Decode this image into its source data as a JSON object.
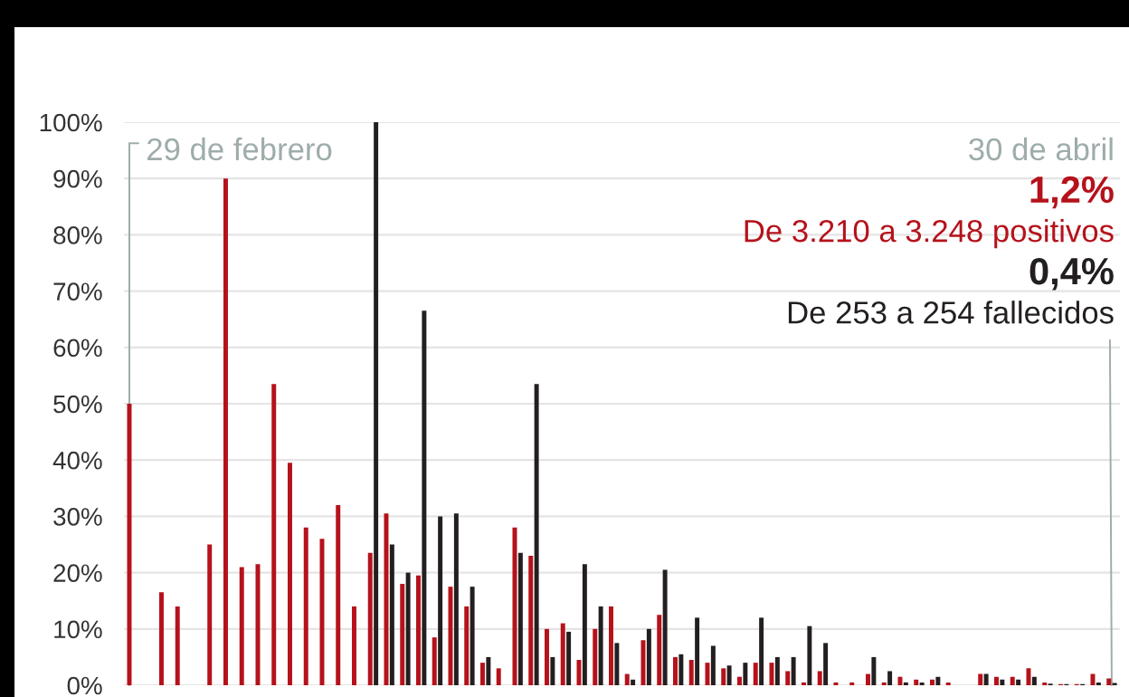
{
  "chart_data": {
    "type": "bar",
    "categories": [
      null,
      null,
      null,
      null,
      null,
      null,
      null,
      null,
      null,
      null,
      null,
      null,
      null,
      null,
      null,
      null,
      null,
      null,
      null,
      null,
      null,
      null,
      null,
      null,
      null,
      null,
      null,
      null,
      null,
      null,
      null,
      null,
      null,
      null,
      null,
      null,
      null,
      null,
      null,
      null,
      null,
      null,
      null,
      null,
      null,
      null,
      null,
      null,
      null,
      null,
      null,
      null,
      null,
      null,
      null,
      null,
      null,
      null,
      null,
      null,
      null,
      null
    ],
    "series": [
      {
        "color": "#b5121b",
        "values": [
          50,
          0,
          16.5,
          14,
          0,
          25,
          90,
          21,
          21.5,
          53.5,
          39.5,
          28,
          26,
          32,
          14,
          23.5,
          30.5,
          18,
          19.5,
          8.5,
          17.5,
          14,
          4,
          3,
          28,
          23,
          10,
          11,
          4.5,
          10,
          14,
          2,
          8,
          12.5,
          5,
          4.5,
          4,
          3,
          1.5,
          4,
          4,
          2.5,
          0.5,
          2.5,
          0.5,
          0.5,
          2,
          0.5,
          1.5,
          1,
          1,
          0.5,
          0,
          2,
          1.5,
          1.5,
          3,
          0.5,
          0.2,
          0.2,
          2,
          1.2
        ]
      },
      {
        "color": "#231f20",
        "values": [
          null,
          null,
          null,
          null,
          null,
          null,
          null,
          null,
          null,
          null,
          null,
          null,
          null,
          null,
          null,
          100,
          25,
          20,
          66.5,
          30,
          30.5,
          17.5,
          5,
          0,
          23.5,
          53.5,
          5,
          9.5,
          21.5,
          14,
          7.5,
          1,
          10,
          20.5,
          5.5,
          12,
          7,
          3.5,
          4,
          12,
          5,
          5,
          10.5,
          7.5,
          0,
          0,
          5,
          2.5,
          0.5,
          0.5,
          1.5,
          0,
          0,
          2,
          1,
          1,
          1.5,
          0.3,
          0.2,
          0.2,
          0.5,
          0.4
        ]
      }
    ],
    "ylim": [
      0,
      100
    ],
    "yticks": [
      {
        "value": 0,
        "label": "0%"
      },
      {
        "value": 10,
        "label": "10%"
      },
      {
        "value": 20,
        "label": "20%"
      },
      {
        "value": 30,
        "label": "30%"
      },
      {
        "value": 40,
        "label": "40%"
      },
      {
        "value": 50,
        "label": "50%"
      },
      {
        "value": 60,
        "label": "60%"
      },
      {
        "value": 70,
        "label": "70%"
      },
      {
        "value": 80,
        "label": "80%"
      },
      {
        "value": 90,
        "label": "90%"
      },
      {
        "value": 100,
        "label": "100%"
      }
    ],
    "grid": "y",
    "tick_labels": "y",
    "annotations": [
      "29 de febrero",
      "30 de abril",
      "1,2%",
      "De 3.210 a 3.248 positivos",
      "0,4%",
      "De 253 a 254 fallecidos"
    ]
  }
}
